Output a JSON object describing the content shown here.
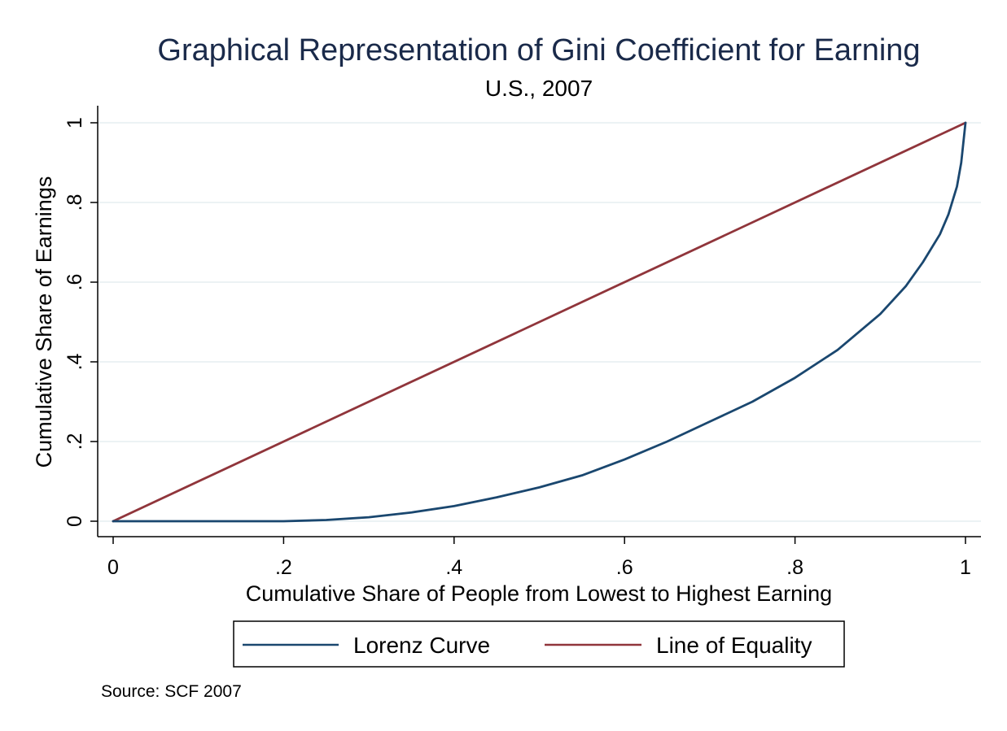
{
  "chart_data": {
    "type": "line",
    "title": "Graphical Representation of Gini Coefficient for Earning",
    "subtitle": "U.S., 2007",
    "xlabel": "Cumulative Share of People from Lowest to Highest Earning",
    "ylabel": "Cumulative Share of Earnings",
    "xlim": [
      0,
      1
    ],
    "ylim": [
      0,
      1
    ],
    "x_ticks": [
      0,
      0.2,
      0.4,
      0.6,
      0.8,
      1
    ],
    "x_tick_labels": [
      "0",
      ".2",
      ".4",
      ".6",
      ".8",
      "1"
    ],
    "y_ticks": [
      0,
      0.2,
      0.4,
      0.6,
      0.8,
      1
    ],
    "y_tick_labels": [
      "0",
      ".2",
      ".4",
      ".6",
      ".8",
      "1"
    ],
    "grid": true,
    "legend_position": "bottom",
    "series": [
      {
        "name": "Lorenz Curve",
        "color": "#1a476f",
        "x": [
          0,
          0.1,
          0.2,
          0.25,
          0.3,
          0.35,
          0.4,
          0.45,
          0.5,
          0.55,
          0.6,
          0.65,
          0.7,
          0.75,
          0.8,
          0.85,
          0.9,
          0.93,
          0.95,
          0.97,
          0.98,
          0.99,
          0.995,
          1.0
        ],
        "y": [
          0,
          0,
          0,
          0.003,
          0.01,
          0.022,
          0.038,
          0.06,
          0.085,
          0.115,
          0.155,
          0.2,
          0.25,
          0.3,
          0.36,
          0.43,
          0.52,
          0.59,
          0.65,
          0.72,
          0.77,
          0.84,
          0.9,
          1.0
        ]
      },
      {
        "name": "Line of Equality",
        "color": "#90353b",
        "x": [
          0,
          1
        ],
        "y": [
          0,
          1
        ]
      }
    ],
    "note": "Source: SCF 2007"
  }
}
